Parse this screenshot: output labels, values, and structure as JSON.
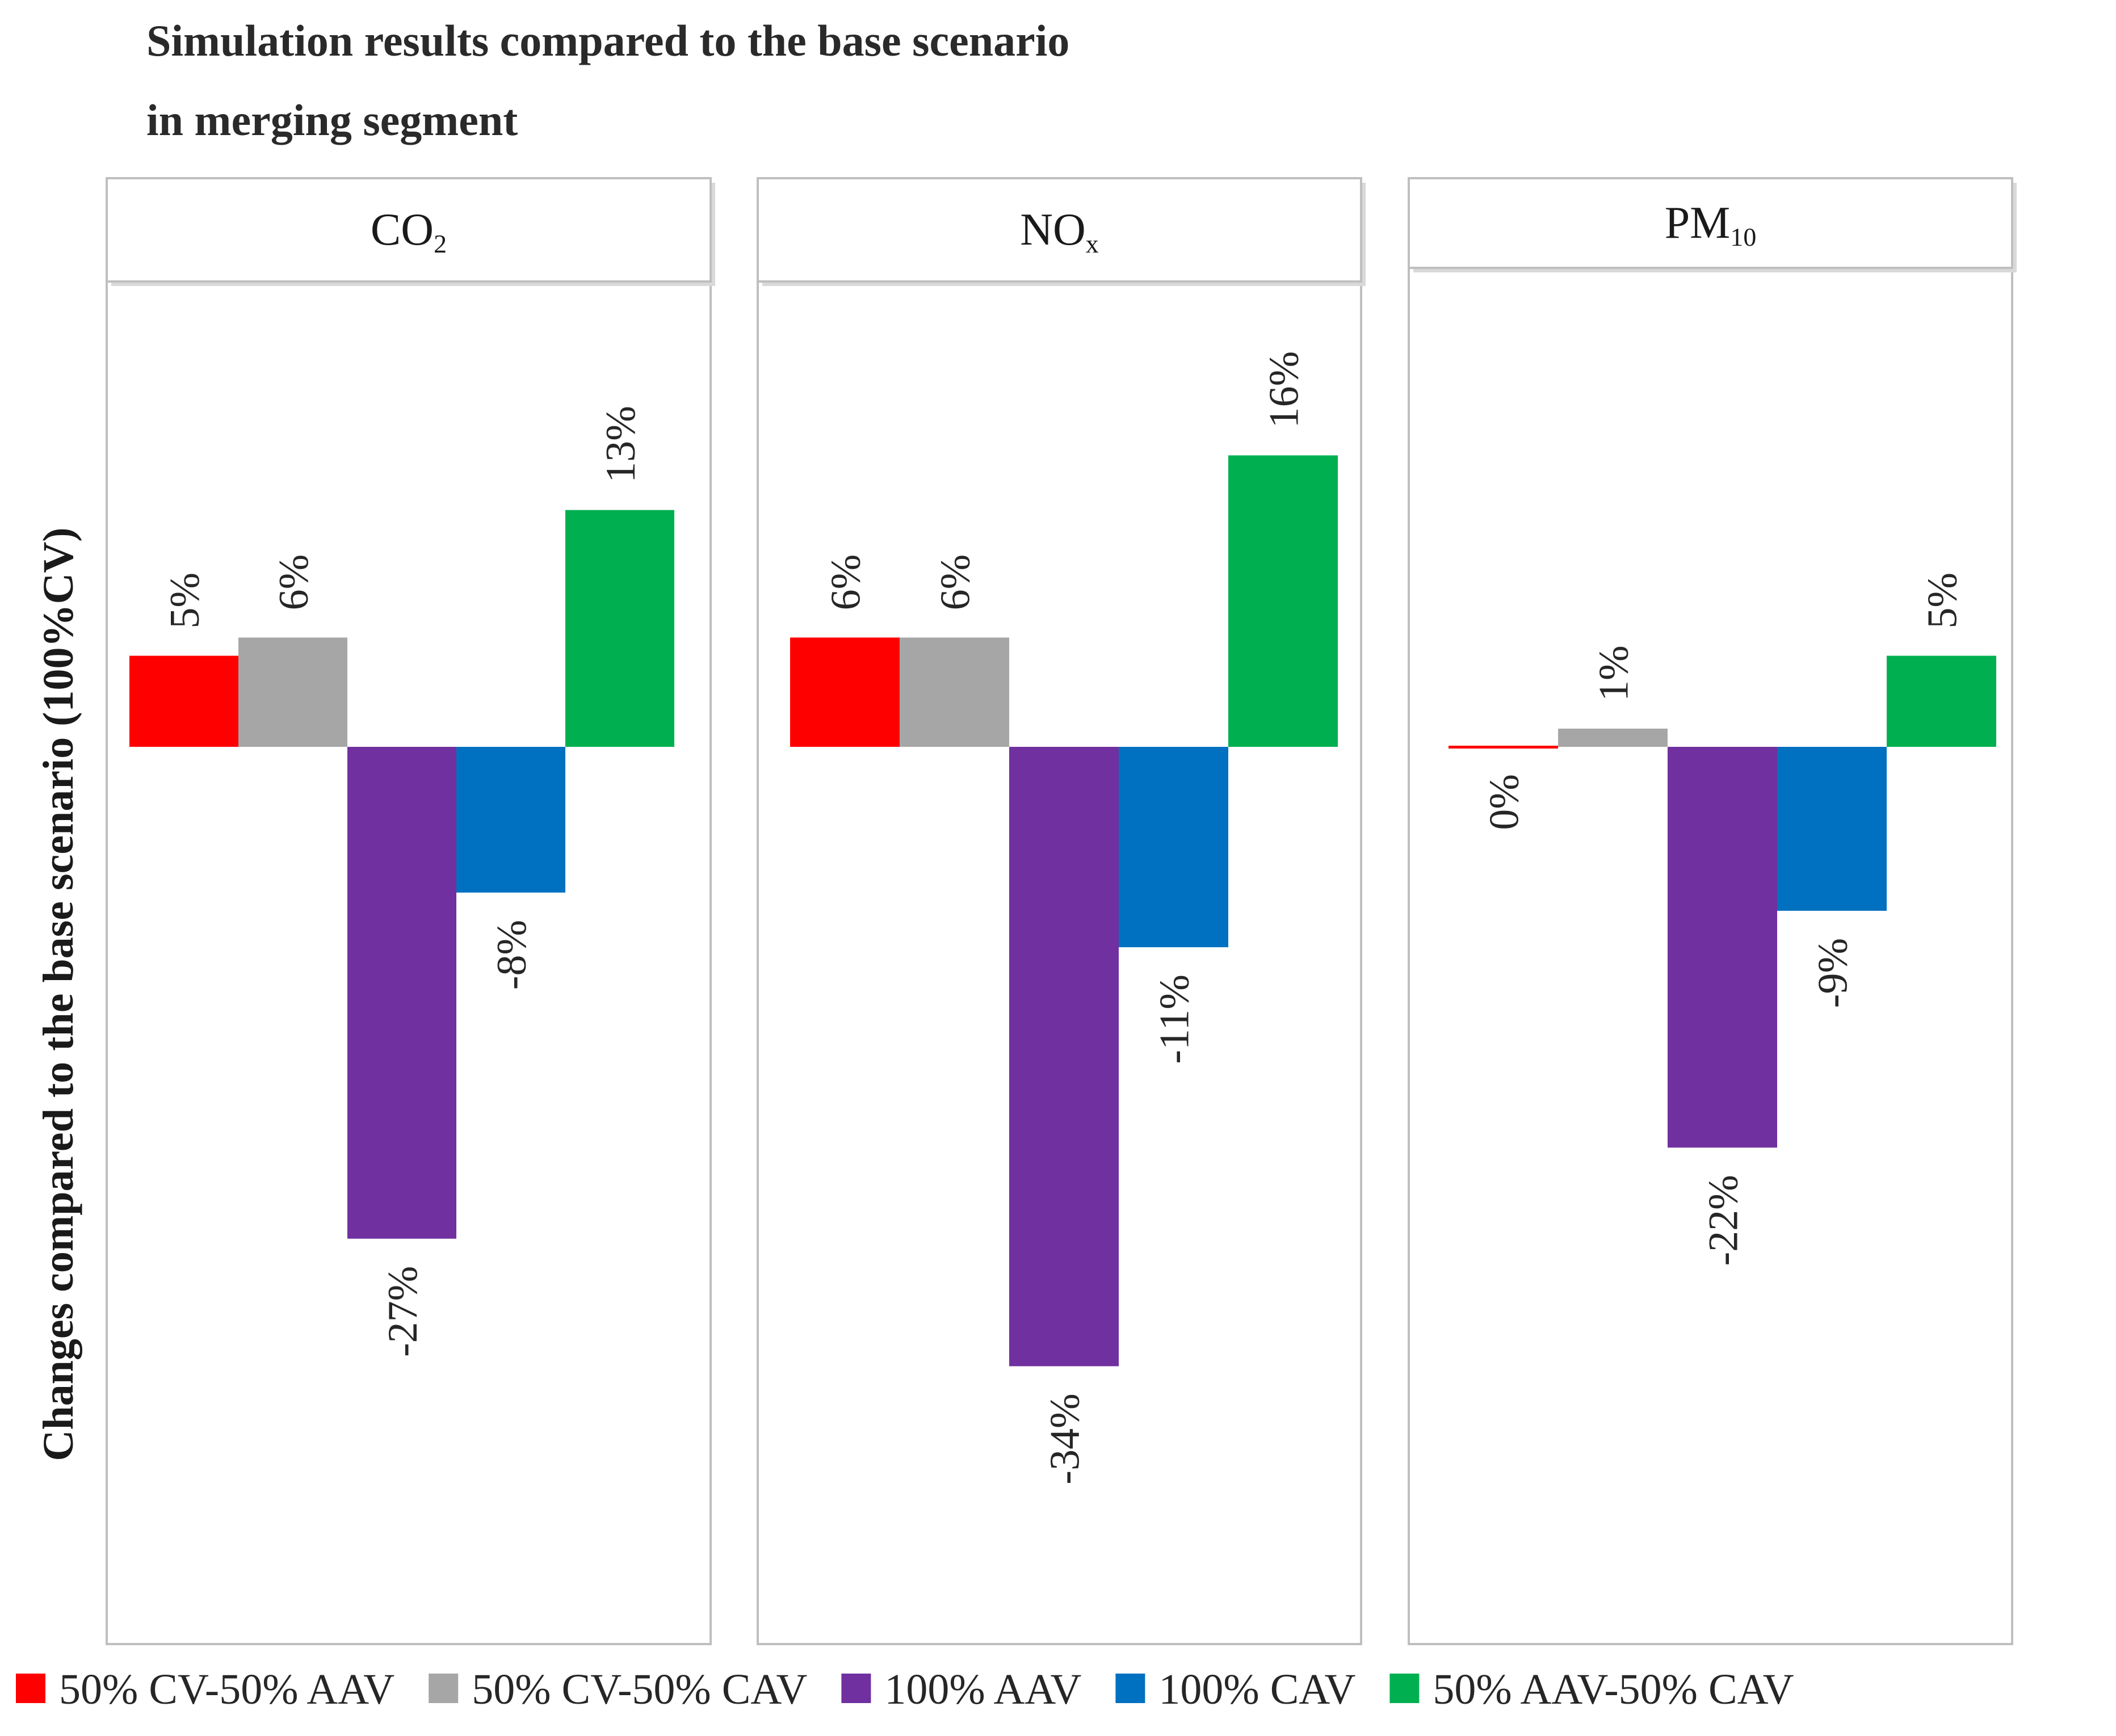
{
  "chart_data": {
    "type": "bar",
    "title_lines": [
      "Simulation results compared to the base scenario",
      "in merging segment"
    ],
    "ylabel": "Changes compared to the base scenario (100%CV)",
    "xlabel": "",
    "ylim": [
      -40,
      20
    ],
    "series": [
      {
        "name": "50% CV-50% AAV",
        "color": "#ff0000"
      },
      {
        "name": "50% CV-50% CAV",
        "color": "#a6a6a6"
      },
      {
        "name": "100% AAV",
        "color": "#7030a0"
      },
      {
        "name": "100% CAV",
        "color": "#0070c0"
      },
      {
        "name": "50% AAV-50% CAV",
        "color": "#00b050"
      }
    ],
    "panels": [
      {
        "name": "CO2",
        "base": "CO",
        "sub": "2",
        "values": [
          5,
          6,
          -27,
          -8,
          13
        ],
        "labels": [
          "5%",
          "6%",
          "-27%",
          "-8%",
          "13%"
        ]
      },
      {
        "name": "NOx",
        "base": "NO",
        "sub": "x",
        "values": [
          6,
          6,
          -34,
          -11,
          16
        ],
        "labels": [
          "6%",
          "6%",
          "-34%",
          "-11%",
          "16%"
        ]
      },
      {
        "name": "PM10",
        "base": "PM",
        "sub": "10",
        "values": [
          0,
          1,
          -22,
          -9,
          5
        ],
        "labels": [
          "0%",
          "1%",
          "-22%",
          "-9%",
          "5%"
        ]
      }
    ]
  }
}
